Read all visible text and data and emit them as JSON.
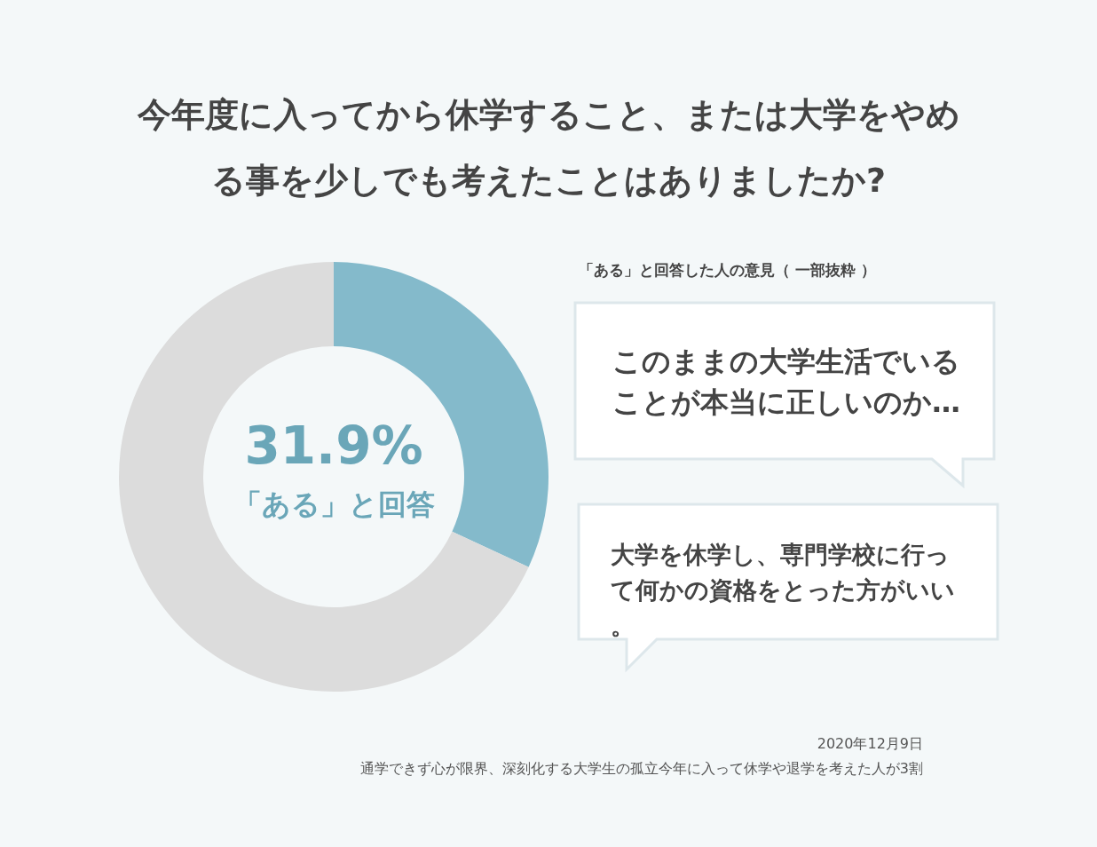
{
  "chart_data": {
    "type": "donut",
    "title": "今年度に入ってから休学すること、または大学をやめる事を少しでも考えたことはありましたか?",
    "categories": [
      "「ある」と回答",
      null
    ],
    "values": [
      31.9,
      68.1
    ],
    "colors": [
      "#84bacb",
      "#dcdcdc"
    ],
    "value_labels": [
      "31.9%",
      null
    ],
    "annotations": [
      "「ある」と回答した人の意見（ 一部抜粋 ）",
      "このままの大学生活でいることが本当に正しいのか…",
      "大学を休学し、専門学校に行って何かの資格をとった方がいい。",
      "2020年12月9日",
      "通学できず心が限界、深刻化する大学生の孤立今年に入って休学や退学を考えた人が3割"
    ]
  }
}
